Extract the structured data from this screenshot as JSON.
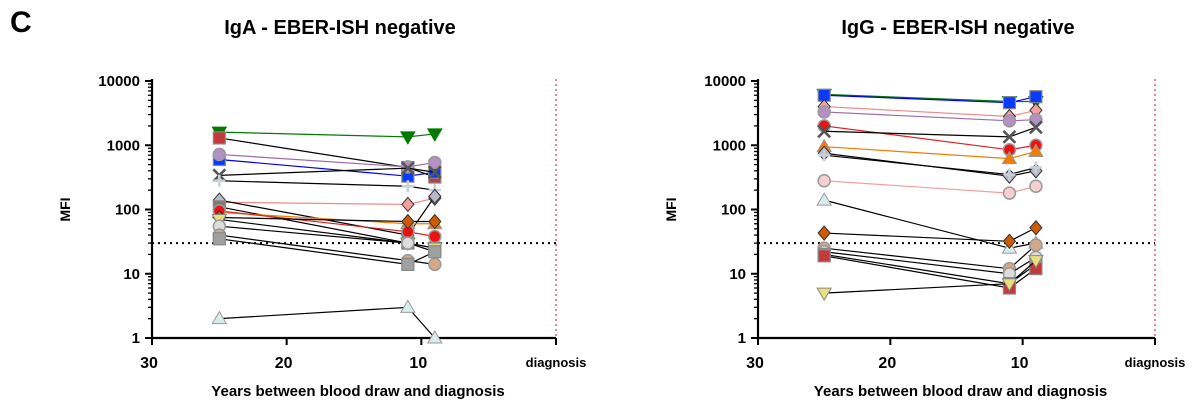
{
  "panel_letter": "C",
  "chart_data": [
    {
      "type": "line",
      "title": "IgA - EBER-ISH negative",
      "xlabel": "Years between blood draw and diagnosis",
      "ylabel": "MFI",
      "y_scale": "log",
      "ylim": [
        1,
        10000
      ],
      "xlim": [
        30,
        0
      ],
      "x_reversed": true,
      "x_ticks": [
        "30",
        "20",
        "10",
        "diagnosis"
      ],
      "y_ticks": [
        "1",
        "10",
        "100",
        "1000",
        "10000"
      ],
      "threshold": 30,
      "threshold_style": "dotted",
      "diagnosis_line_style": "dotted-red",
      "series": [
        {
          "points": [
            [
              25,
              1600
            ],
            [
              11,
              1350
            ],
            [
              9,
              1500
            ]
          ],
          "color": "#007a00",
          "marker": "tri-down"
        },
        {
          "points": [
            [
              25,
              1300
            ],
            [
              11,
              450
            ],
            [
              9,
              320
            ]
          ],
          "color": "#000000",
          "marker": "square",
          "fill": "#c23a3a"
        },
        {
          "points": [
            [
              25,
              600
            ],
            [
              11,
              330
            ],
            [
              9,
              380
            ]
          ],
          "color": "#0000ee",
          "marker": "square",
          "fill": "#0a3aff"
        },
        {
          "points": [
            [
              25,
              720
            ],
            [
              11,
              460
            ],
            [
              9,
              540
            ]
          ],
          "color": "#9a6aa8",
          "marker": "circle",
          "fill": "#b590c4"
        },
        {
          "points": [
            [
              25,
              340
            ],
            [
              11,
              440
            ],
            [
              9,
              380
            ]
          ],
          "color": "#000000",
          "marker": "x",
          "fill": "#555555"
        },
        {
          "points": [
            [
              25,
              280
            ],
            [
              11,
              230
            ],
            [
              9,
              200
            ]
          ],
          "color": "#000000",
          "marker": "plus",
          "fill": "#c8d0d8"
        },
        {
          "points": [
            [
              25,
              130
            ],
            [
              11,
              120
            ],
            [
              9,
              150
            ]
          ],
          "color": "#f08a8a",
          "marker": "diamond",
          "fill": "#f4a0a0"
        },
        {
          "points": [
            [
              25,
              140
            ],
            [
              11,
              40
            ],
            [
              9,
              160
            ]
          ],
          "color": "#000000",
          "marker": "diamond",
          "fill": "#b8b8c8"
        },
        {
          "points": [
            [
              25,
              110
            ],
            [
              11,
              30
            ],
            [
              9,
              25
            ]
          ],
          "color": "#000000",
          "marker": "square",
          "fill": "#7a7a7a"
        },
        {
          "points": [
            [
              25,
              90
            ],
            [
              11,
              60
            ],
            [
              9,
              60
            ]
          ],
          "color": "#f07d00",
          "marker": "tri-up",
          "fill": "#f07d00"
        },
        {
          "points": [
            [
              25,
              95
            ],
            [
              11,
              45
            ],
            [
              9,
              38
            ]
          ],
          "color": "#e02020",
          "marker": "circle",
          "fill": "#ee1111"
        },
        {
          "points": [
            [
              25,
              75
            ],
            [
              11,
              65
            ],
            [
              9,
              65
            ]
          ],
          "color": "#000000",
          "marker": "diamond",
          "fill": "#d05a00"
        },
        {
          "points": [
            [
              25,
              70
            ],
            [
              11,
              30
            ],
            [
              9,
              25
            ]
          ],
          "color": "#000000",
          "marker": "tri-down",
          "fill": "#e8e07a"
        },
        {
          "points": [
            [
              25,
              55
            ],
            [
              11,
              30
            ],
            [
              9,
              22
            ]
          ],
          "color": "#000000",
          "marker": "circle",
          "fill": "#dddddd"
        },
        {
          "points": [
            [
              25,
              40
            ],
            [
              11,
              16
            ],
            [
              9,
              14
            ]
          ],
          "color": "#000000",
          "marker": "circle",
          "fill": "#d4a98a"
        },
        {
          "points": [
            [
              25,
              35
            ],
            [
              11,
              14
            ],
            [
              9,
              22
            ]
          ],
          "color": "#000000",
          "marker": "square",
          "fill": "#a0a0a0"
        },
        {
          "points": [
            [
              25,
              2
            ],
            [
              11,
              3
            ],
            [
              9,
              1
            ]
          ],
          "color": "#000000",
          "marker": "tri-up",
          "fill": "#d8ecec"
        }
      ]
    },
    {
      "type": "line",
      "title": "IgG - EBER-ISH negative",
      "xlabel": "Years between blood draw and diagnosis",
      "ylabel": "MFI",
      "y_scale": "log",
      "ylim": [
        1,
        10000
      ],
      "xlim": [
        30,
        0
      ],
      "x_reversed": true,
      "x_ticks": [
        "30",
        "20",
        "10",
        "diagnosis"
      ],
      "y_ticks": [
        "1",
        "10",
        "100",
        "1000",
        "10000"
      ],
      "threshold": 30,
      "threshold_style": "dotted",
      "diagnosis_line_style": "dotted-red",
      "series": [
        {
          "points": [
            [
              25,
              6200
            ],
            [
              11,
              4800
            ],
            [
              9,
              4800
            ]
          ],
          "color": "#007a00",
          "marker": "tri-down"
        },
        {
          "points": [
            [
              25,
              6000
            ],
            [
              11,
              4600
            ],
            [
              9,
              5700
            ]
          ],
          "color": "#0000ee",
          "marker": "square",
          "fill": "#0a3aff"
        },
        {
          "points": [
            [
              25,
              4000
            ],
            [
              11,
              2800
            ],
            [
              9,
              3500
            ]
          ],
          "color": "#f08a8a",
          "marker": "diamond",
          "fill": "#f4a0a0"
        },
        {
          "points": [
            [
              25,
              3300
            ],
            [
              11,
              2400
            ],
            [
              9,
              2500
            ]
          ],
          "color": "#9a6aa8",
          "marker": "circle",
          "fill": "#b590c4"
        },
        {
          "points": [
            [
              25,
              2000
            ],
            [
              11,
              850
            ],
            [
              9,
              1000
            ]
          ],
          "color": "#e02020",
          "marker": "circle",
          "fill": "#ee1111"
        },
        {
          "points": [
            [
              25,
              1650
            ],
            [
              11,
              1350
            ],
            [
              9,
              1900
            ]
          ],
          "color": "#000000",
          "marker": "x",
          "fill": "#555555"
        },
        {
          "points": [
            [
              25,
              950
            ],
            [
              11,
              620
            ],
            [
              9,
              800
            ]
          ],
          "color": "#f07d00",
          "marker": "tri-up",
          "fill": "#f07d00"
        },
        {
          "points": [
            [
              25,
              750
            ],
            [
              11,
              330
            ],
            [
              9,
              400
            ]
          ],
          "color": "#000000",
          "marker": "diamond",
          "fill": "#b8b8c8"
        },
        {
          "points": [
            [
              25,
              700
            ],
            [
              11,
              350
            ],
            [
              9,
              450
            ]
          ],
          "color": "#000000",
          "marker": "plus",
          "fill": "#c8d0d8"
        },
        {
          "points": [
            [
              25,
              280
            ],
            [
              11,
              180
            ],
            [
              9,
              230
            ]
          ],
          "color": "#f0a0a0",
          "marker": "circle",
          "fill": "#f6d0d0"
        },
        {
          "points": [
            [
              25,
              140
            ],
            [
              11,
              25
            ],
            [
              9,
              30
            ]
          ],
          "color": "#000000",
          "marker": "tri-up",
          "fill": "#d8ecec"
        },
        {
          "points": [
            [
              25,
              43
            ],
            [
              11,
              32
            ],
            [
              9,
              52
            ]
          ],
          "color": "#000000",
          "marker": "diamond",
          "fill": "#d05a00"
        },
        {
          "points": [
            [
              25,
              25
            ],
            [
              11,
              12
            ],
            [
              9,
              28
            ]
          ],
          "color": "#000000",
          "marker": "circle",
          "fill": "#d4a98a"
        },
        {
          "points": [
            [
              25,
              22
            ],
            [
              11,
              10
            ],
            [
              9,
              18
            ]
          ],
          "color": "#000000",
          "marker": "circle",
          "fill": "#dddddd"
        },
        {
          "points": [
            [
              25,
              20
            ],
            [
              11,
              7
            ],
            [
              9,
              14
            ]
          ],
          "color": "#000000",
          "marker": "square",
          "fill": "#a0a0a0"
        },
        {
          "points": [
            [
              25,
              19
            ],
            [
              11,
              6
            ],
            [
              9,
              12
            ]
          ],
          "color": "#000000",
          "marker": "square",
          "fill": "#c23a3a"
        },
        {
          "points": [
            [
              25,
              5
            ],
            [
              11,
              7
            ],
            [
              9,
              16
            ]
          ],
          "color": "#000000",
          "marker": "tri-down",
          "fill": "#e8e07a"
        }
      ]
    }
  ]
}
